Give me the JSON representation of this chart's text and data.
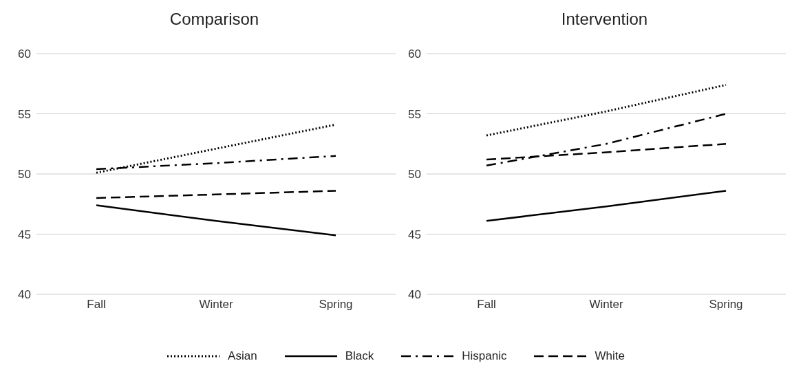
{
  "chart_data": [
    {
      "type": "line",
      "title": "Comparison",
      "categories": [
        "Fall",
        "Winter",
        "Spring"
      ],
      "ylim": [
        40,
        60
      ],
      "yticks": [
        40,
        45,
        50,
        55,
        60
      ],
      "grid": "y",
      "legend": "bottom",
      "marker": "none",
      "series": [
        {
          "name": "Asian",
          "color": "#000000",
          "line_style": "dotted",
          "values": [
            50.1,
            52.1,
            54.1
          ]
        },
        {
          "name": "Black",
          "color": "#000000",
          "line_style": "solid",
          "values": [
            47.4,
            46.1,
            44.9
          ]
        },
        {
          "name": "Hispanic",
          "color": "#000000",
          "line_style": "dashdot",
          "values": [
            50.4,
            50.9,
            51.5
          ]
        },
        {
          "name": "White",
          "color": "#000000",
          "line_style": "dashed",
          "values": [
            48.0,
            48.3,
            48.6
          ]
        }
      ]
    },
    {
      "type": "line",
      "title": "Intervention",
      "categories": [
        "Fall",
        "Winter",
        "Spring"
      ],
      "ylim": [
        40,
        60
      ],
      "yticks": [
        40,
        45,
        50,
        55,
        60
      ],
      "grid": "y",
      "marker": "none",
      "series": [
        {
          "color": "#000000",
          "line_style": "dotted",
          "values": [
            53.2,
            55.2,
            57.4
          ]
        },
        {
          "color": "#000000",
          "line_style": "solid",
          "values": [
            46.1,
            47.3,
            48.6
          ]
        },
        {
          "color": "#000000",
          "line_style": "dashdot",
          "values": [
            50.7,
            52.5,
            55.0
          ]
        },
        {
          "color": "#000000",
          "line_style": "dashed",
          "values": [
            51.2,
            51.8,
            52.5
          ]
        }
      ]
    }
  ]
}
